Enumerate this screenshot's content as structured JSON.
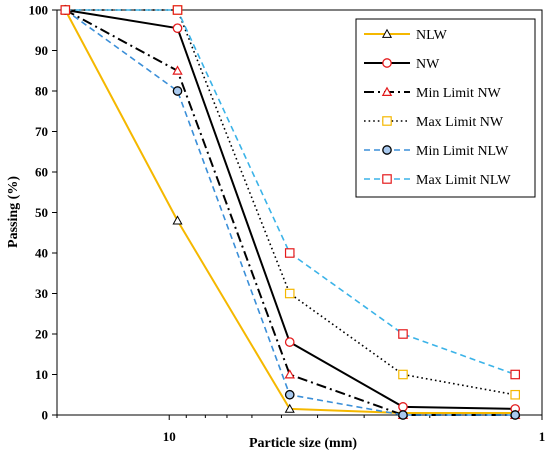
{
  "chart_data": {
    "type": "line",
    "xlabel": "Particle size (mm)",
    "ylabel": "Passing (%)",
    "x_scale": "log",
    "x_reversed": true,
    "xlim": [
      20,
      1
    ],
    "ylim": [
      0,
      100
    ],
    "y_ticks": [
      0,
      10,
      20,
      30,
      40,
      50,
      60,
      70,
      80,
      90,
      100
    ],
    "x_ticks": [
      10,
      1
    ],
    "grid": false,
    "legend_position": "top-right",
    "series": [
      {
        "name": "NLW",
        "color": "#F5B800",
        "dash": "solid",
        "marker": "triangle",
        "x": [
          19,
          9.5,
          4.75,
          2.36,
          1.18
        ],
        "y": [
          100,
          48,
          1.5,
          0.5,
          0.5
        ]
      },
      {
        "name": "NW",
        "color": "#000000",
        "dash": "solid",
        "marker": "circle",
        "x": [
          19,
          9.5,
          4.75,
          2.36,
          1.18
        ],
        "y": [
          100,
          95.5,
          18,
          2,
          1.5
        ]
      },
      {
        "name": "Min Limit NW",
        "color": "#000000",
        "dash": "dashdot",
        "marker": "triangle-red",
        "x": [
          19,
          9.5,
          4.75,
          2.36,
          1.18
        ],
        "y": [
          100,
          85,
          10,
          0,
          0
        ]
      },
      {
        "name": "Max Limit NW",
        "color": "#000000",
        "dash": "dotted",
        "marker": "square-yellow",
        "x": [
          19,
          9.5,
          4.75,
          2.36,
          1.18
        ],
        "y": [
          100,
          100,
          30,
          10,
          5
        ]
      },
      {
        "name": "Min Limit NLW",
        "color": "#3B8FD8",
        "dash": "dashed",
        "marker": "circle-filled",
        "x": [
          19,
          9.5,
          4.75,
          2.36,
          1.18
        ],
        "y": [
          100,
          80,
          5,
          0,
          0
        ]
      },
      {
        "name": "Max Limit NLW",
        "color": "#3BB3E8",
        "dash": "dashed",
        "marker": "square-red",
        "x": [
          19,
          9.5,
          4.75,
          2.36,
          1.18
        ],
        "y": [
          100,
          100,
          40,
          20,
          10
        ]
      }
    ]
  }
}
